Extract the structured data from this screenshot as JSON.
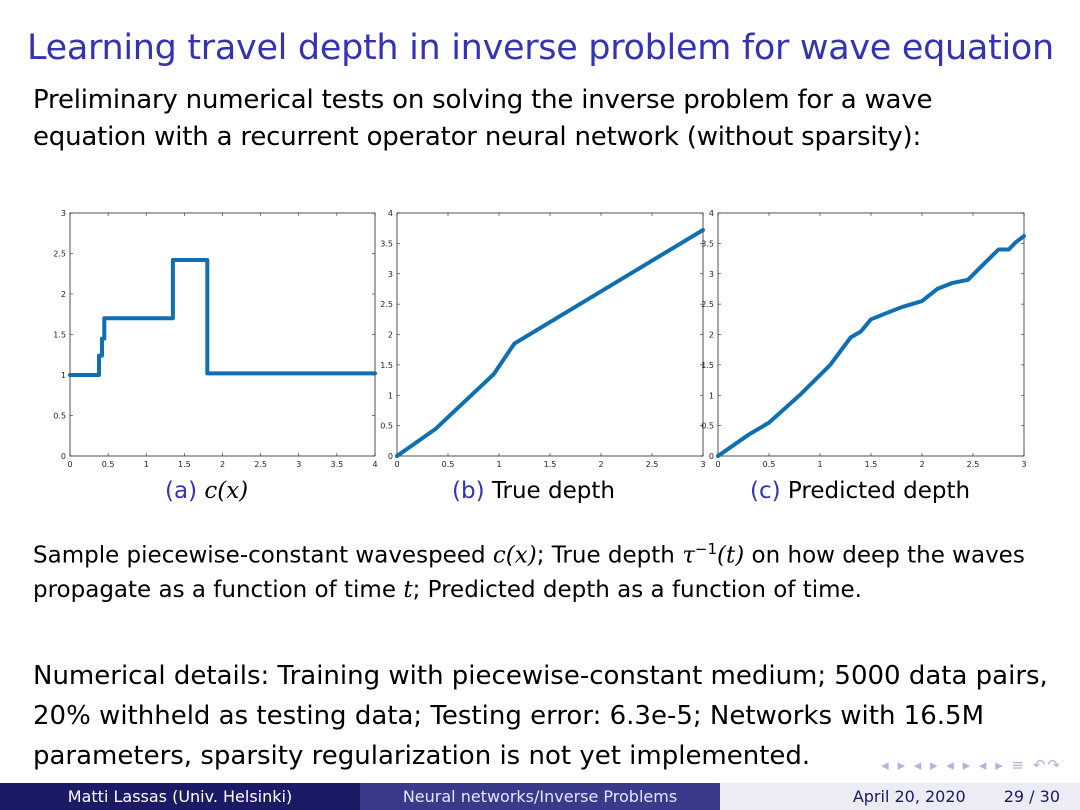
{
  "slide": {
    "title": "Learning travel depth in inverse problem for wave equation",
    "intro": "Preliminary numerical tests on solving the inverse problem for a wave equation with a recurrent operator neural network (without sparsity):",
    "captions": [
      {
        "label": "(a)",
        "text": "c(x)"
      },
      {
        "label": "(b)",
        "text": "True depth"
      },
      {
        "label": "(c)",
        "text": "Predicted depth"
      }
    ],
    "description": {
      "p1": "Sample piecewise-constant wavespeed ",
      "m1": "c(x)",
      "p2": "; True depth ",
      "m2": "τ",
      "m2sup": "−1",
      "m2b": "(t)",
      "p3": " on how deep the waves propagate as a function of time ",
      "m3": "t",
      "p4": "; Predicted depth as a function of time."
    },
    "details": "Numerical details: Training with piecewise-constant medium; 5000 data pairs, 20% withheld as testing data; Testing error: 6.3e-5; Networks with 16.5M parameters, sparsity regularization is not yet implemented.",
    "footer": {
      "author": "Matti Lassas  (Univ. Helsinki)",
      "talk": "Neural networks/Inverse Problems",
      "date": "April 20, 2020",
      "page": "29 / 30"
    },
    "nav_symbols": "◂ ▸ ◂ ▸ ◂ ▸ ◂ ▸  ≡  ↶↷"
  },
  "chart_data": [
    {
      "type": "line",
      "title": "",
      "xlim": [
        0,
        4
      ],
      "ylim": [
        0,
        3
      ],
      "xticks": [
        "0",
        "0.5",
        "1",
        "1.5",
        "2",
        "2.5",
        "3",
        "3.5",
        "4"
      ],
      "yticks": [
        "0",
        "0.5",
        "1",
        "1.5",
        "2",
        "2.5",
        "3"
      ],
      "series": [
        {
          "color": "#0f6fb3",
          "x": [
            0,
            0.38,
            0.38,
            0.42,
            0.42,
            0.45,
            0.45,
            1.35,
            1.35,
            1.8,
            1.8,
            4.0
          ],
          "y": [
            1,
            1,
            1.24,
            1.24,
            1.45,
            1.45,
            1.7,
            1.7,
            2.42,
            2.42,
            1.02,
            1.02
          ]
        }
      ]
    },
    {
      "type": "line",
      "title": "",
      "xlim": [
        0,
        3
      ],
      "ylim": [
        0,
        4
      ],
      "xticks": [
        "0",
        "0.5",
        "1",
        "1.5",
        "2",
        "2.5",
        "3"
      ],
      "yticks": [
        "0",
        "0.5",
        "1",
        "1.5",
        "2",
        "2.5",
        "3",
        "3.5",
        "4"
      ],
      "series": [
        {
          "color": "#0f6fb3",
          "x": [
            0,
            0.38,
            0.95,
            1.15,
            3.0
          ],
          "y": [
            0,
            0.45,
            1.35,
            1.85,
            3.72
          ]
        }
      ]
    },
    {
      "type": "line",
      "title": "",
      "xlim": [
        0,
        3
      ],
      "ylim": [
        0,
        4
      ],
      "xticks": [
        "0",
        "0.5",
        "1",
        "1.5",
        "2",
        "2.5",
        "3"
      ],
      "yticks": [
        "0",
        "0.5",
        "1",
        "1.5",
        "2",
        "2.5",
        "3",
        "3.5",
        "4"
      ],
      "series": [
        {
          "color": "#0f6fb3",
          "x": [
            0,
            0.3,
            0.5,
            0.8,
            1.1,
            1.3,
            1.4,
            1.5,
            1.65,
            1.8,
            2.0,
            2.15,
            2.3,
            2.45,
            2.6,
            2.75,
            2.85,
            2.92,
            3.0
          ],
          "y": [
            0,
            0.35,
            0.55,
            1.0,
            1.5,
            1.95,
            2.05,
            2.25,
            2.35,
            2.45,
            2.55,
            2.75,
            2.85,
            2.9,
            3.15,
            3.4,
            3.4,
            3.52,
            3.62
          ]
        }
      ]
    }
  ]
}
